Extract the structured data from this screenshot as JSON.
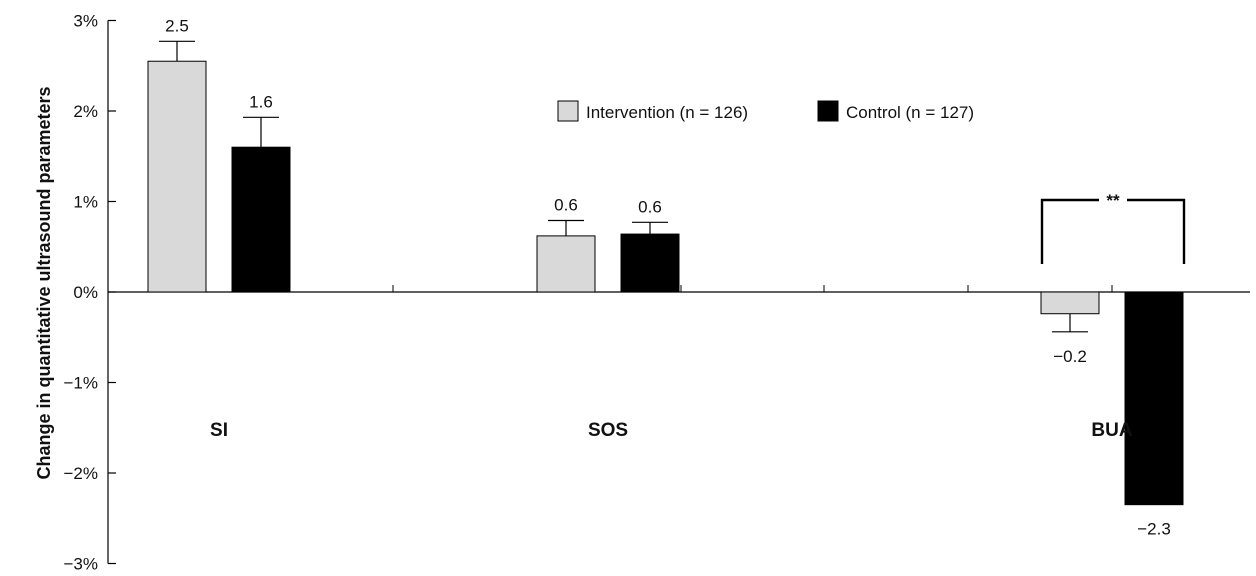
{
  "chart_data": {
    "type": "bar",
    "ylabel": "Change in quantitative ultrasound parameters",
    "ylim": [
      -3,
      3
    ],
    "yticks": [
      3,
      2,
      1,
      0,
      -1,
      -2,
      -3
    ],
    "ytick_labels": [
      "3%",
      "2%",
      "1%",
      "0%",
      "−1%",
      "−2%",
      "−3%"
    ],
    "categories": [
      "SI",
      "SOS",
      "BUA"
    ],
    "series": [
      {
        "name": "Intervention (n = 126)",
        "color": "#d9d9d9",
        "values": [
          2.55,
          0.62,
          -0.24
        ],
        "errors": [
          0.22,
          0.17,
          0.2
        ],
        "labels": [
          "2.5",
          "0.6",
          "−0.2"
        ]
      },
      {
        "name": "Control (n = 127)",
        "color": "#000000",
        "values": [
          1.6,
          0.64,
          -2.35
        ],
        "errors": [
          0.33,
          0.13,
          0
        ],
        "labels": [
          "1.6",
          "0.6",
          "−2.3"
        ]
      }
    ],
    "legend_position": "top-center",
    "grid": false,
    "annotations": [
      {
        "text": "**",
        "category": "BUA",
        "type": "significance-bracket"
      }
    ]
  }
}
